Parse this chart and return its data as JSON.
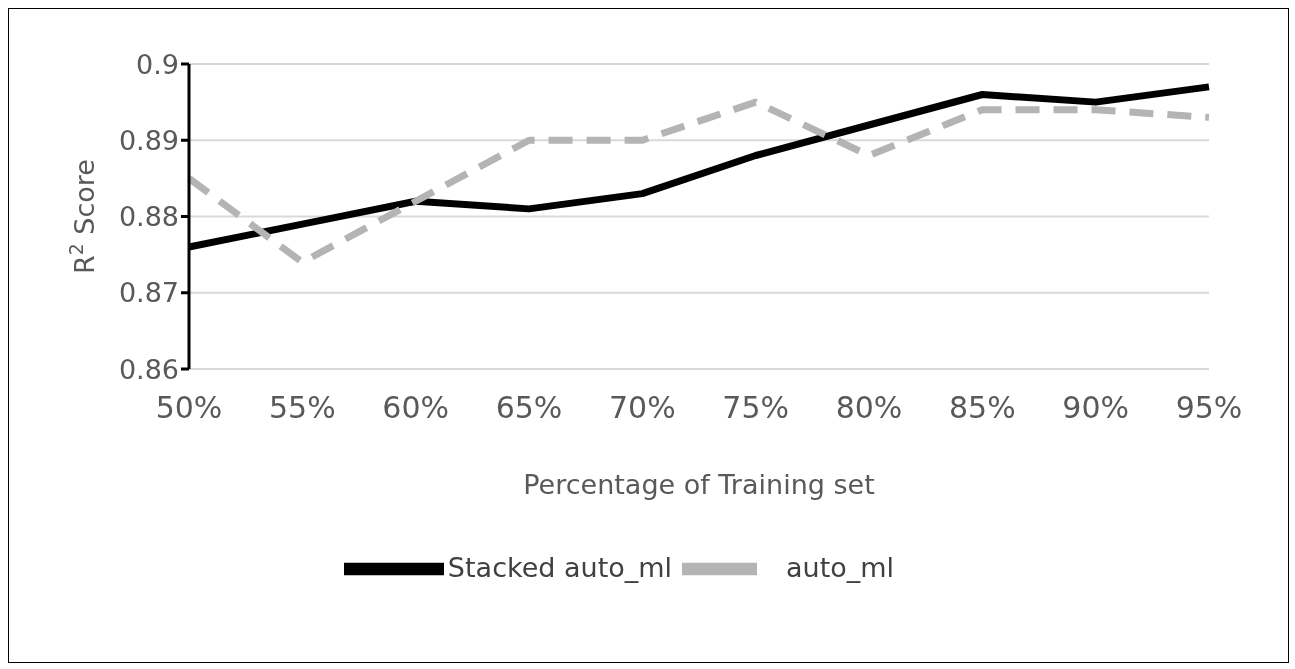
{
  "chart_data": {
    "type": "line",
    "xlabel": "Percentage of Training set",
    "ylabel": "R$^{2}$ Score",
    "categories": [
      "50%",
      "55%",
      "60%",
      "65%",
      "70%",
      "75%",
      "80%",
      "85%",
      "90%",
      "95%"
    ],
    "series": [
      {
        "name": "Stacked auto_ml",
        "color": "#000000",
        "line_style": "solid",
        "values": [
          0.876,
          0.879,
          0.882,
          0.881,
          0.883,
          0.888,
          0.892,
          0.896,
          0.895,
          0.897
        ]
      },
      {
        "name": "auto_ml",
        "color": "#b4b4b4",
        "line_style": "dashed",
        "values": [
          0.885,
          0.874,
          0.882,
          0.89,
          0.89,
          0.895,
          0.888,
          0.894,
          0.894,
          0.893
        ]
      }
    ],
    "ylim": [
      0.86,
      0.9
    ],
    "yticks": [
      0.86,
      0.87,
      0.88,
      0.89,
      0.9
    ],
    "grid": "y",
    "legend": "bottom",
    "marker": "none"
  }
}
